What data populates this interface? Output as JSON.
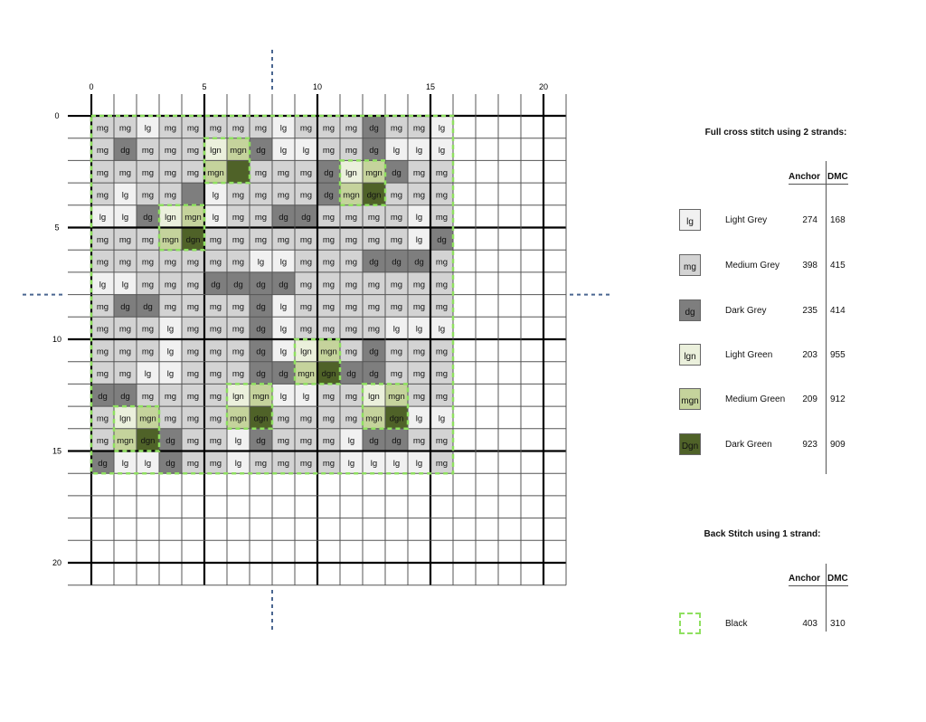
{
  "colors": {
    "lg": "#f1f1f1",
    "mg": "#d3d3d3",
    "dg": "#7e7e7e",
    "lgn": "#ebf0dc",
    "mgn": "#c5d39c",
    "dgn": "#4f6228",
    "backstitch": "#8fe060",
    "center_marker": "#4a6690"
  },
  "axis": {
    "x_ticks": [
      "0",
      "5",
      "10",
      "15",
      "20"
    ],
    "y_ticks": [
      "0",
      "5",
      "10",
      "15",
      "20"
    ],
    "grid_size": 21
  },
  "pattern": [
    [
      "mg",
      "mg",
      "lg",
      "mg",
      "mg",
      "mg",
      "mg",
      "mg",
      "lg",
      "mg",
      "mg",
      "mg",
      "dg",
      "mg",
      "mg",
      "lg"
    ],
    [
      "mg",
      "dg",
      "mg",
      "mg",
      "mg",
      "lgn",
      "mgn",
      "dg",
      "lg",
      "lg",
      "mg",
      "mg",
      "dg",
      "lg",
      "lg",
      "lg"
    ],
    [
      "mg",
      "mg",
      "mg",
      "mg",
      "mg",
      "mgn",
      "dgn:",
      "mg",
      "mg",
      "mg",
      "dg",
      "lgn",
      "mgn",
      "dg",
      "mg",
      "mg"
    ],
    [
      "mg",
      "lg",
      "mg",
      "mg",
      "dg:",
      "lg",
      "mg",
      "mg",
      "mg",
      "mg",
      "dg",
      "mgn",
      "dgn",
      "mg",
      "mg",
      "mg"
    ],
    [
      "lg",
      "lg",
      "dg",
      "lgn",
      "mgn",
      "lg",
      "mg",
      "mg",
      "dg",
      "dg",
      "mg",
      "mg",
      "mg",
      "mg",
      "lg",
      "mg"
    ],
    [
      "mg",
      "mg",
      "mg",
      "mgn",
      "dgn",
      "mg",
      "mg",
      "mg",
      "mg",
      "mg",
      "mg",
      "mg",
      "mg",
      "mg",
      "lg",
      "dg"
    ],
    [
      "mg",
      "mg",
      "mg",
      "mg",
      "mg",
      "mg",
      "mg",
      "lg",
      "lg",
      "mg",
      "mg",
      "mg",
      "dg",
      "dg",
      "dg",
      "mg"
    ],
    [
      "lg",
      "lg",
      "mg",
      "mg",
      "mg",
      "dg",
      "dg",
      "dg",
      "dg",
      "mg",
      "mg",
      "mg",
      "mg",
      "mg",
      "mg",
      "mg"
    ],
    [
      "mg",
      "dg",
      "dg",
      "mg",
      "mg",
      "mg",
      "mg",
      "dg",
      "lg",
      "mg",
      "mg",
      "mg",
      "mg",
      "mg",
      "mg",
      "mg"
    ],
    [
      "mg",
      "mg",
      "mg",
      "lg",
      "mg",
      "mg",
      "mg",
      "dg",
      "lg",
      "mg",
      "mg",
      "mg",
      "mg",
      "lg",
      "lg",
      "lg"
    ],
    [
      "mg",
      "mg",
      "mg",
      "lg",
      "mg",
      "mg",
      "mg",
      "dg",
      "lg",
      "lgn",
      "mgn",
      "mg",
      "dg",
      "mg",
      "mg",
      "mg"
    ],
    [
      "mg",
      "mg",
      "lg",
      "lg",
      "mg",
      "mg",
      "mg",
      "dg",
      "dg",
      "mgn",
      "dgn",
      "dg",
      "dg",
      "mg",
      "mg",
      "mg"
    ],
    [
      "dg",
      "dg",
      "mg",
      "mg",
      "mg",
      "mg",
      "lgn",
      "mgn",
      "lg",
      "lg",
      "mg",
      "mg",
      "lgn",
      "mgn",
      "mg",
      "mg"
    ],
    [
      "mg",
      "lgn",
      "mgn",
      "mg",
      "mg",
      "mg",
      "mgn",
      "dgn",
      "mg",
      "mg",
      "mg",
      "mg",
      "mgn",
      "dgn",
      "lg",
      "lg"
    ],
    [
      "mg",
      "mgn",
      "dgn",
      "dg",
      "mg",
      "mg",
      "lg",
      "dg",
      "mg",
      "mg",
      "mg",
      "lg",
      "dg",
      "dg",
      "mg",
      "mg"
    ],
    [
      "dg",
      "lg",
      "lg",
      "dg",
      "mg",
      "mg",
      "lg",
      "mg",
      "mg",
      "mg",
      "mg",
      "lg",
      "lg",
      "lg",
      "lg",
      "mg"
    ]
  ],
  "backstitch_outlines": [
    {
      "col": 0,
      "row": 0,
      "w": 16,
      "h": 16
    },
    {
      "col": 5,
      "row": 1,
      "w": 2,
      "h": 2
    },
    {
      "col": 3,
      "row": 4,
      "w": 2,
      "h": 2
    },
    {
      "col": 11,
      "row": 2,
      "w": 2,
      "h": 2
    },
    {
      "col": 9,
      "row": 10,
      "w": 2,
      "h": 2
    },
    {
      "col": 6,
      "row": 12,
      "w": 2,
      "h": 2
    },
    {
      "col": 12,
      "row": 12,
      "w": 2,
      "h": 2
    },
    {
      "col": 1,
      "row": 13,
      "w": 2,
      "h": 2
    }
  ],
  "legend": {
    "full_title": "Full cross stitch using 2 strands:",
    "anchor_header": "Anchor",
    "dmc_header": "DMC",
    "threads": [
      {
        "code": "lg",
        "swatch_label": "lg",
        "name": "Light Grey",
        "anchor": "274",
        "dmc": "168"
      },
      {
        "code": "mg",
        "swatch_label": "mg",
        "name": "Medium Grey",
        "anchor": "398",
        "dmc": "415"
      },
      {
        "code": "dg",
        "swatch_label": "dg",
        "name": "Dark Grey",
        "anchor": "235",
        "dmc": "414"
      },
      {
        "code": "lgn",
        "swatch_label": "lgn",
        "name": "Light Green",
        "anchor": "203",
        "dmc": "955"
      },
      {
        "code": "mgn",
        "swatch_label": "mgn",
        "name": "Medium Green",
        "anchor": "209",
        "dmc": "912"
      },
      {
        "code": "dgn",
        "swatch_label": "Dgn",
        "name": "Dark Green",
        "anchor": "923",
        "dmc": "909"
      }
    ],
    "back_title": "Back Stitch using 1 strand:",
    "back_anchor_header": "Anchor",
    "back_dmc_header": "DMC",
    "back_thread": {
      "name": "Black",
      "anchor": "403",
      "dmc": "310"
    }
  }
}
